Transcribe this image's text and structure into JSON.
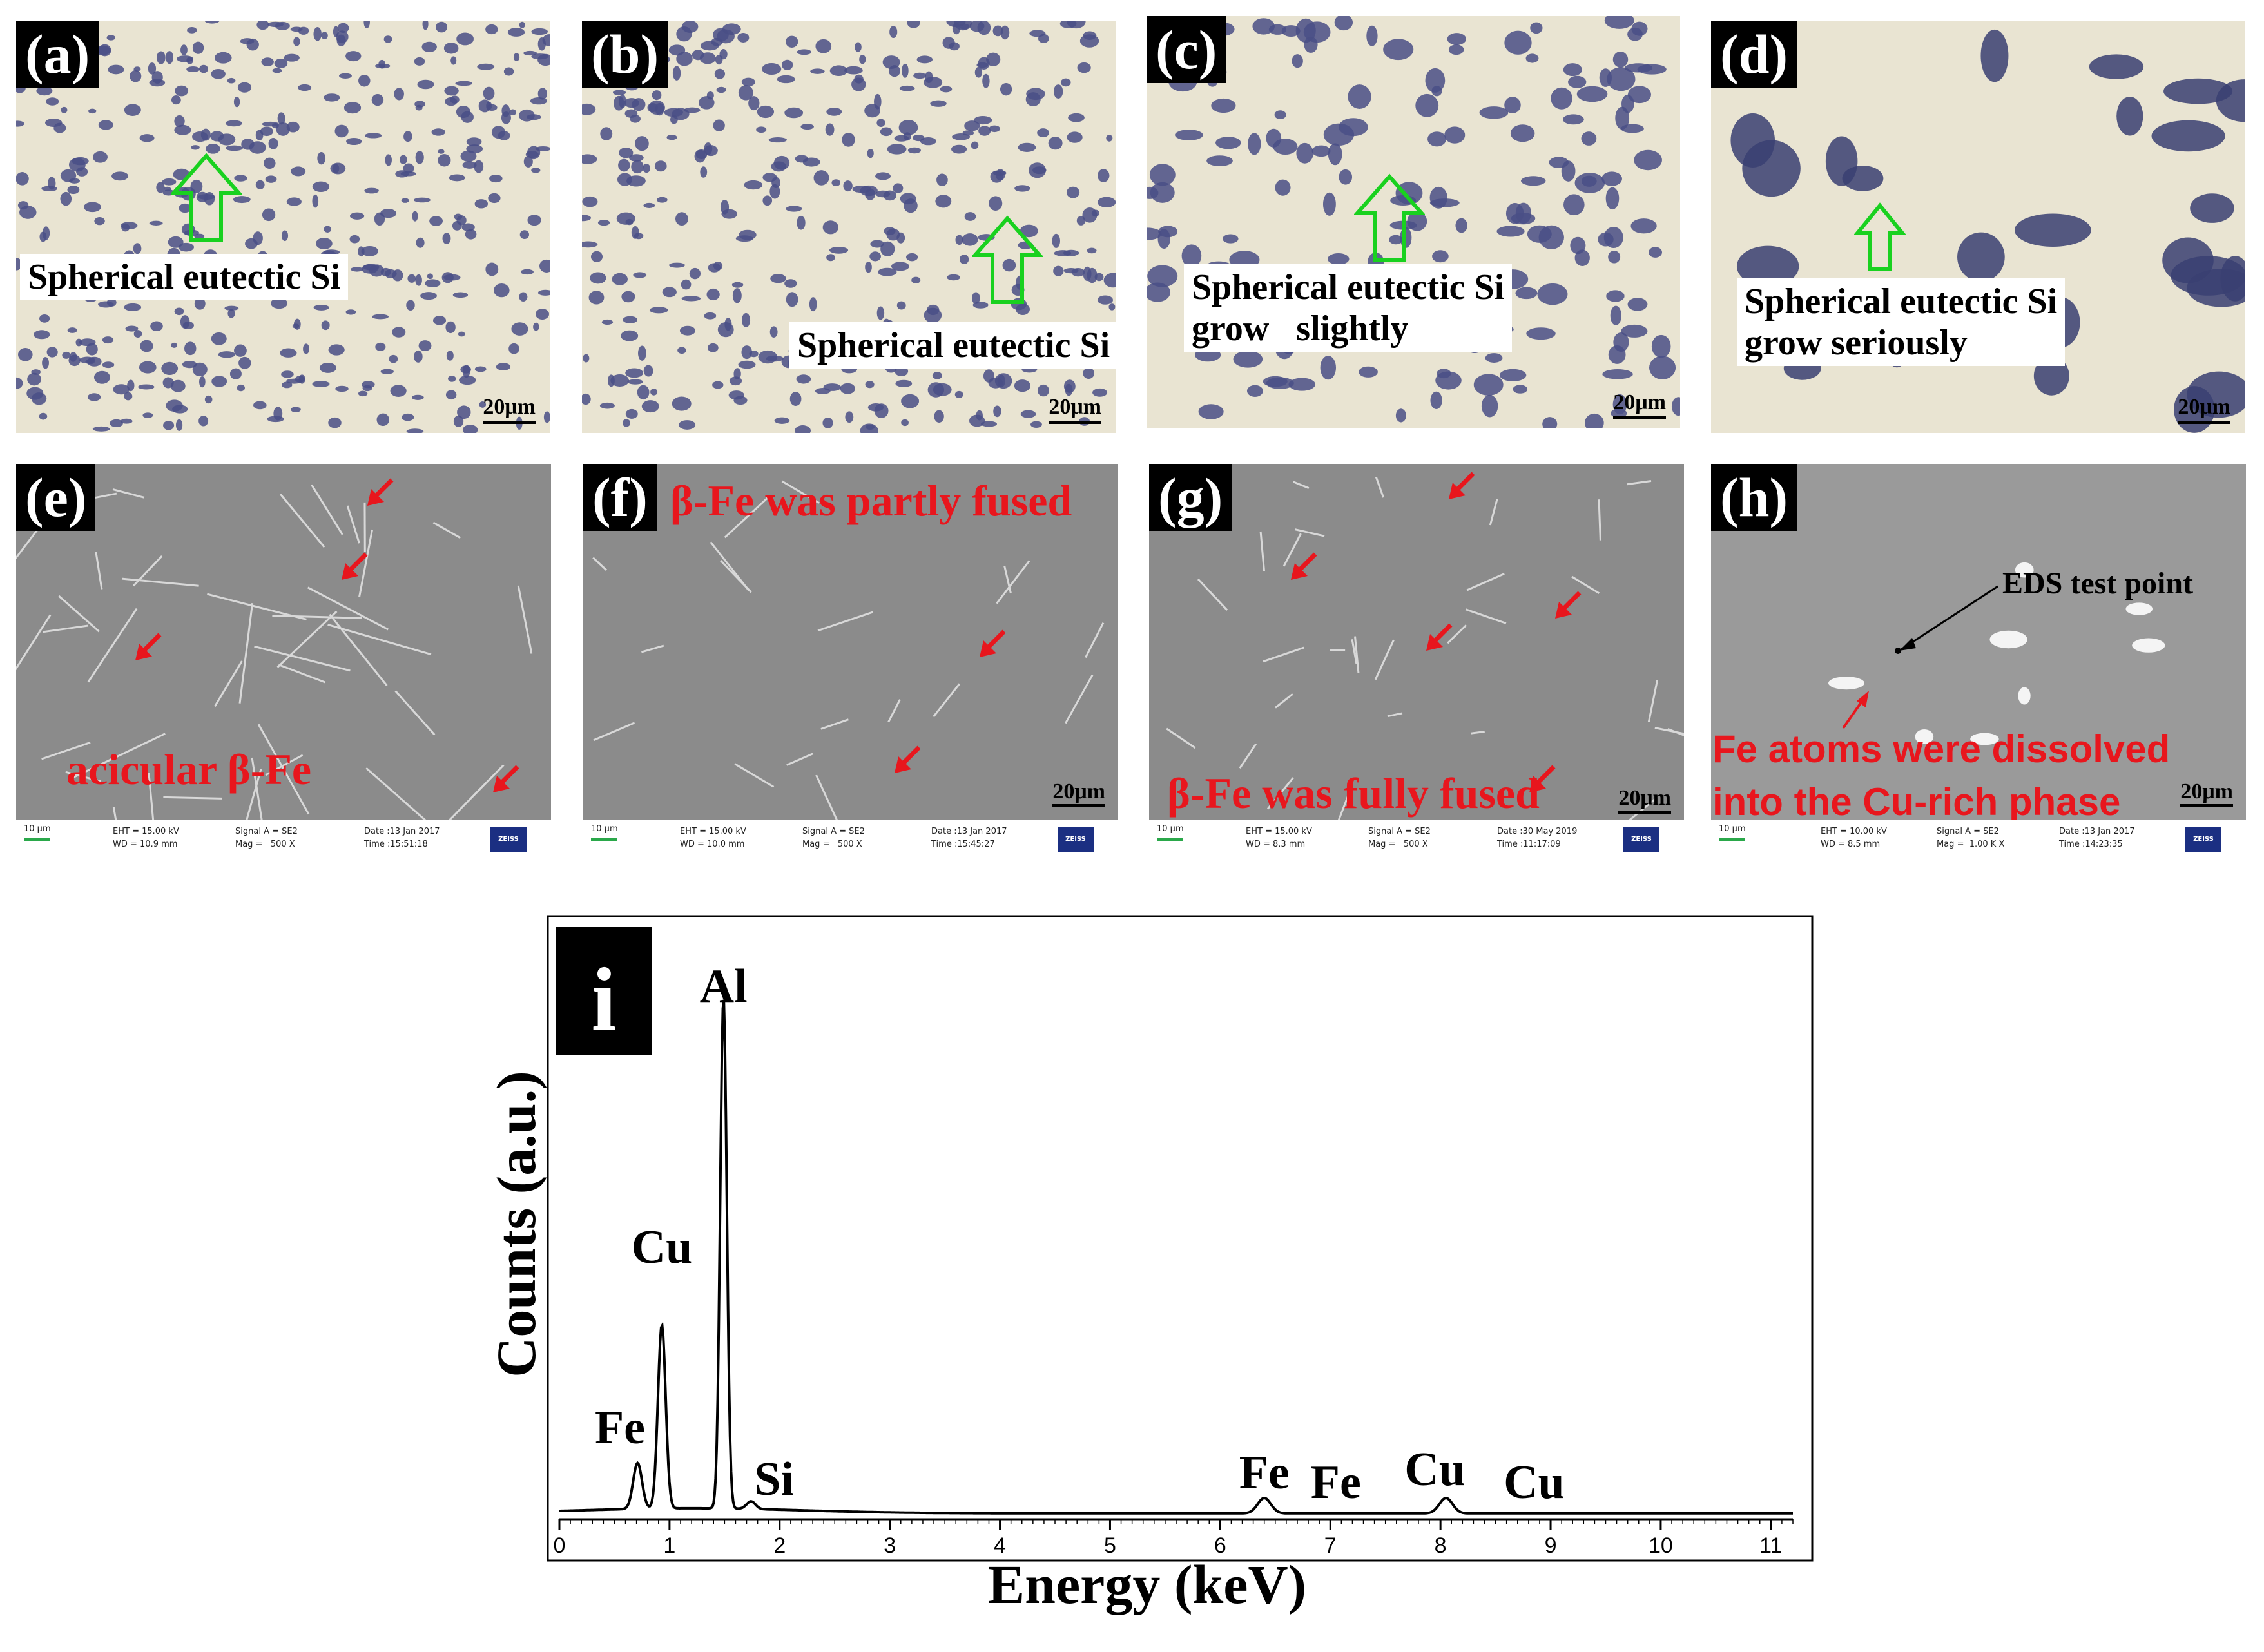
{
  "figure": {
    "panels": [
      {
        "id": "a",
        "label": "(a)",
        "kind": "optical",
        "annotation": "Spherical eutectic Si",
        "scale": "20μm",
        "mark_color": "#4a4f86"
      },
      {
        "id": "b",
        "label": "(b)",
        "kind": "optical",
        "annotation": "Spherical eutectic Si",
        "scale": "20μm",
        "mark_color": "#4a4f86"
      },
      {
        "id": "c",
        "label": "(c)",
        "kind": "optical",
        "annotation": "Spherical eutectic Si\ngrow   slightly",
        "scale": "20μm",
        "mark_color": "#4a4f86"
      },
      {
        "id": "d",
        "label": "(d)",
        "kind": "optical",
        "annotation": "Spherical eutectic Si\ngrow seriously",
        "scale": "20μm",
        "mark_color": "#3a3f72"
      },
      {
        "id": "e",
        "label": "(e)",
        "kind": "sem",
        "annotation": "acicular β-Fe",
        "footer": {
          "scale": "10 μm",
          "col1": "EHT = 15.00 kV\nWD = 10.9 mm",
          "col2": "Signal A = SE2\nMag =   500 X",
          "col3": "Date :13 Jan 2017\nTime :15:51:18"
        }
      },
      {
        "id": "f",
        "label": "(f)",
        "kind": "sem",
        "annotation": "β-Fe was partly fused",
        "scale": "20μm",
        "footer": {
          "scale": "10 μm",
          "col1": "EHT = 15.00 kV\nWD = 10.0 mm",
          "col2": "Signal A = SE2\nMag =   500 X",
          "col3": "Date :13 Jan 2017\nTime :15:45:27"
        }
      },
      {
        "id": "g",
        "label": "(g)",
        "kind": "sem",
        "annotation": "β-Fe was fully fused",
        "scale": "20μm",
        "footer": {
          "scale": "10 μm",
          "col1": "EHT = 15.00 kV\nWD = 8.3 mm",
          "col2": "Signal A = SE2\nMag =   500 X",
          "col3": "Date :30 May 2019\nTime :11:17:09"
        }
      },
      {
        "id": "h",
        "label": "(h)",
        "kind": "sem",
        "annotation_black": "EDS test point",
        "annotation": "Fe atoms were dissolved\ninto the Cu-rich phase",
        "scale": "20μm",
        "footer": {
          "scale": "10 μm",
          "col1": "EHT = 10.00 kV\nWD = 8.5 mm",
          "col2": "Signal A = SE2\nMag =  1.00 K X",
          "col3": "Date :13 Jan 2017\nTime :14:23:35"
        }
      }
    ],
    "logo_text": "ZEISS",
    "colors": {
      "arrow_green": "#19d11f",
      "arrow_red": "#e8161d",
      "annotation_red": "#e8161d"
    }
  },
  "chart_data": {
    "type": "line",
    "panel_label": "i",
    "xlabel": "Energy (keV)",
    "ylabel": "Counts (a.u.)",
    "xlim": [
      0,
      11.2
    ],
    "ylim": [
      0,
      1.0
    ],
    "xticks": [
      0,
      1,
      2,
      3,
      4,
      5,
      6,
      7,
      8,
      9,
      10,
      11
    ],
    "series": [
      {
        "peaks": [
          {
            "energy": 0.71,
            "height": 0.09,
            "width": 0.04
          },
          {
            "energy": 0.93,
            "height": 0.36,
            "width": 0.035
          },
          {
            "energy": 1.49,
            "height": 1.0,
            "width": 0.03
          },
          {
            "energy": 1.74,
            "height": 0.015,
            "width": 0.04
          },
          {
            "energy": 6.4,
            "height": 0.03,
            "width": 0.06
          },
          {
            "energy": 8.05,
            "height": 0.03,
            "width": 0.06
          }
        ]
      }
    ],
    "annotations": [
      {
        "text": "Al",
        "energy": 1.49
      },
      {
        "text": "Cu",
        "energy": 0.93
      },
      {
        "text": "Fe",
        "energy": 0.55
      },
      {
        "text": "Si",
        "energy": 1.95
      },
      {
        "text": "Fe",
        "energy": 6.4
      },
      {
        "text": "Fe",
        "energy": 7.05
      },
      {
        "text": "Cu",
        "energy": 7.95
      },
      {
        "text": "Cu",
        "energy": 8.85
      }
    ]
  }
}
